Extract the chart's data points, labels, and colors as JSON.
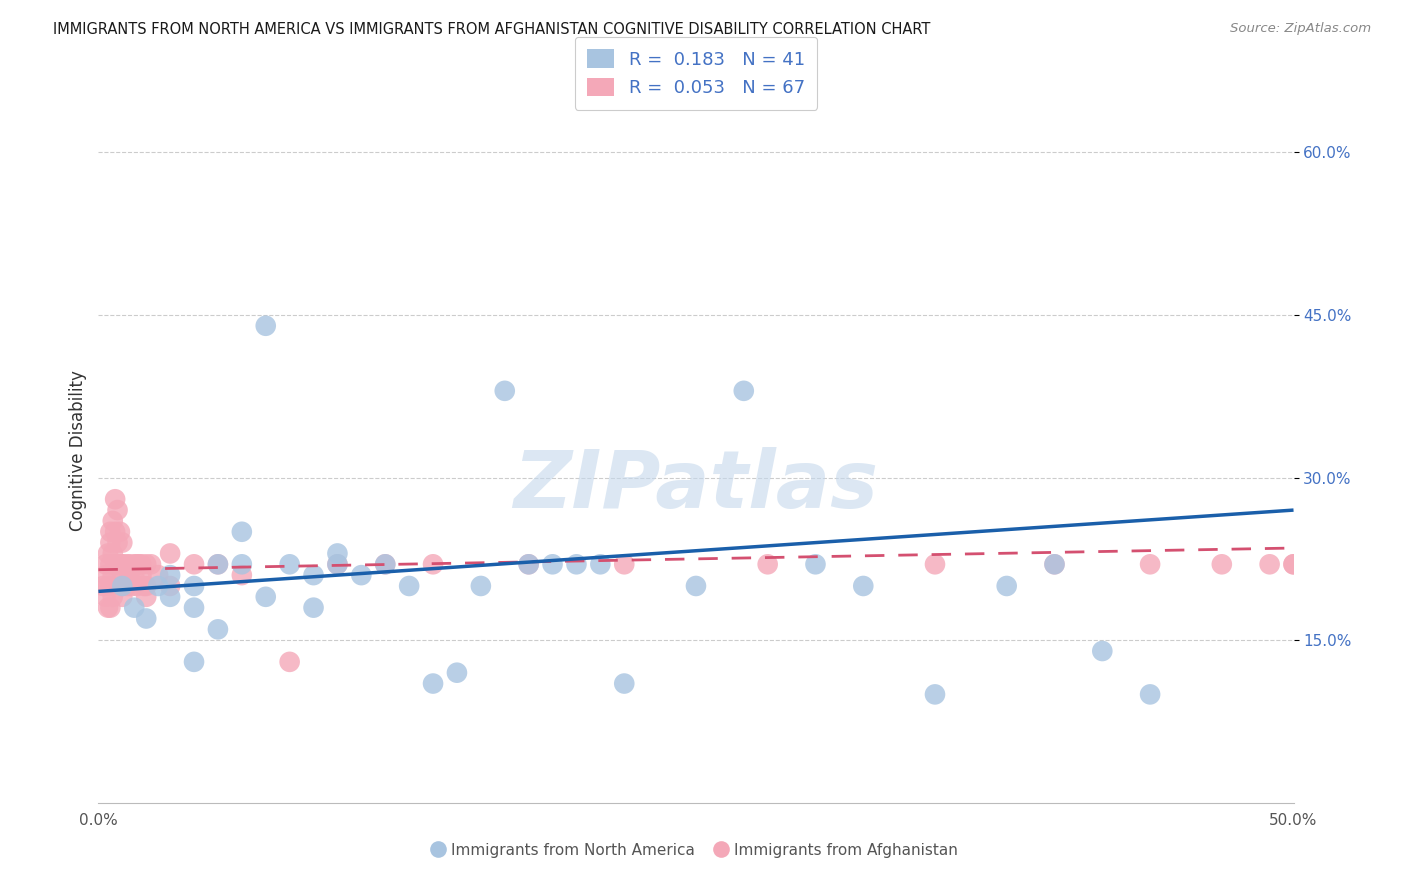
{
  "title": "IMMIGRANTS FROM NORTH AMERICA VS IMMIGRANTS FROM AFGHANISTAN COGNITIVE DISABILITY CORRELATION CHART",
  "source": "Source: ZipAtlas.com",
  "ylabel": "Cognitive Disability",
  "x_min": 0.0,
  "x_max": 0.5,
  "y_min": 0.0,
  "y_max": 0.65,
  "x_tick_positions": [
    0.0,
    0.1,
    0.2,
    0.3,
    0.4,
    0.5
  ],
  "x_tick_labels": [
    "0.0%",
    "",
    "",
    "",
    "",
    "50.0%"
  ],
  "y_tick_positions": [
    0.15,
    0.3,
    0.45,
    0.6
  ],
  "y_tick_labels": [
    "15.0%",
    "30.0%",
    "45.0%",
    "60.0%"
  ],
  "R_blue": 0.183,
  "N_blue": 41,
  "R_pink": 0.053,
  "N_pink": 67,
  "color_blue": "#a8c4e0",
  "color_pink": "#f4a8b8",
  "color_blue_line": "#1a5faa",
  "color_pink_line": "#d45070",
  "watermark": "ZIPatlas",
  "blue_scatter_x": [
    0.01,
    0.015,
    0.02,
    0.025,
    0.03,
    0.03,
    0.04,
    0.04,
    0.04,
    0.05,
    0.05,
    0.06,
    0.06,
    0.07,
    0.07,
    0.08,
    0.09,
    0.09,
    0.1,
    0.1,
    0.11,
    0.12,
    0.13,
    0.14,
    0.15,
    0.16,
    0.17,
    0.18,
    0.19,
    0.2,
    0.21,
    0.22,
    0.25,
    0.27,
    0.3,
    0.32,
    0.35,
    0.38,
    0.4,
    0.42,
    0.44
  ],
  "blue_scatter_y": [
    0.2,
    0.18,
    0.17,
    0.2,
    0.21,
    0.19,
    0.2,
    0.18,
    0.13,
    0.22,
    0.16,
    0.25,
    0.22,
    0.44,
    0.19,
    0.22,
    0.21,
    0.18,
    0.23,
    0.22,
    0.21,
    0.22,
    0.2,
    0.11,
    0.12,
    0.2,
    0.38,
    0.22,
    0.22,
    0.22,
    0.22,
    0.11,
    0.2,
    0.38,
    0.22,
    0.2,
    0.1,
    0.2,
    0.22,
    0.14,
    0.1
  ],
  "pink_scatter_x": [
    0.002,
    0.003,
    0.003,
    0.003,
    0.004,
    0.004,
    0.004,
    0.005,
    0.005,
    0.005,
    0.005,
    0.005,
    0.006,
    0.006,
    0.006,
    0.006,
    0.007,
    0.007,
    0.007,
    0.008,
    0.008,
    0.008,
    0.009,
    0.009,
    0.01,
    0.01,
    0.01,
    0.01,
    0.01,
    0.01,
    0.012,
    0.012,
    0.013,
    0.013,
    0.014,
    0.015,
    0.015,
    0.016,
    0.016,
    0.017,
    0.018,
    0.018,
    0.019,
    0.02,
    0.02,
    0.02,
    0.022,
    0.025,
    0.03,
    0.03,
    0.04,
    0.05,
    0.06,
    0.08,
    0.1,
    0.12,
    0.14,
    0.18,
    0.22,
    0.28,
    0.35,
    0.4,
    0.44,
    0.47,
    0.49,
    0.5,
    0.5
  ],
  "pink_scatter_y": [
    0.2,
    0.22,
    0.19,
    0.21,
    0.23,
    0.2,
    0.18,
    0.22,
    0.25,
    0.2,
    0.18,
    0.24,
    0.26,
    0.23,
    0.21,
    0.19,
    0.28,
    0.25,
    0.22,
    0.27,
    0.24,
    0.22,
    0.25,
    0.22,
    0.24,
    0.22,
    0.21,
    0.2,
    0.19,
    0.22,
    0.22,
    0.2,
    0.22,
    0.21,
    0.2,
    0.22,
    0.21,
    0.22,
    0.2,
    0.22,
    0.22,
    0.21,
    0.2,
    0.22,
    0.2,
    0.19,
    0.22,
    0.21,
    0.23,
    0.2,
    0.22,
    0.22,
    0.21,
    0.13,
    0.22,
    0.22,
    0.22,
    0.22,
    0.22,
    0.22,
    0.22,
    0.22,
    0.22,
    0.22,
    0.22,
    0.22,
    0.22
  ],
  "blue_line_x": [
    0.0,
    0.5
  ],
  "blue_line_y": [
    0.195,
    0.27
  ],
  "pink_line_x": [
    0.0,
    0.5
  ],
  "pink_line_y": [
    0.215,
    0.235
  ]
}
